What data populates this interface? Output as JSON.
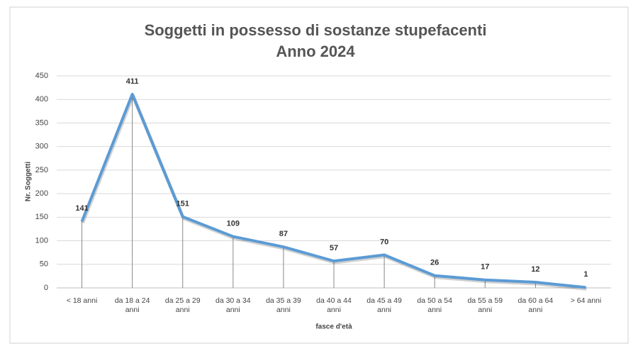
{
  "chart_data": {
    "type": "line",
    "title": "Soggetti in possesso di sostanze stupefacenti",
    "subtitle": "Anno 2024",
    "x_label": "fasce d'età",
    "y_label": "Nr. Soggetti",
    "categories": [
      "< 18 anni",
      "da 18 a 24\nanni",
      "da 25 a 29\nanni",
      "da 30  a 34\nanni",
      "da 35 a 39\nanni",
      "da 40 a 44\nanni",
      "da 45 a 49\nanni",
      "da 50 a 54\nanni",
      "da 55 a 59\nanni",
      "da 60 a 64\nanni",
      "> 64 anni"
    ],
    "values": [
      141,
      411,
      151,
      109,
      87,
      57,
      70,
      26,
      17,
      12,
      1
    ],
    "color": "#5b9bd5",
    "ylim": [
      0,
      450
    ],
    "yticks": [
      0,
      50,
      100,
      150,
      200,
      250,
      300,
      350,
      400,
      450
    ],
    "grid": true,
    "drop_lines": true
  }
}
